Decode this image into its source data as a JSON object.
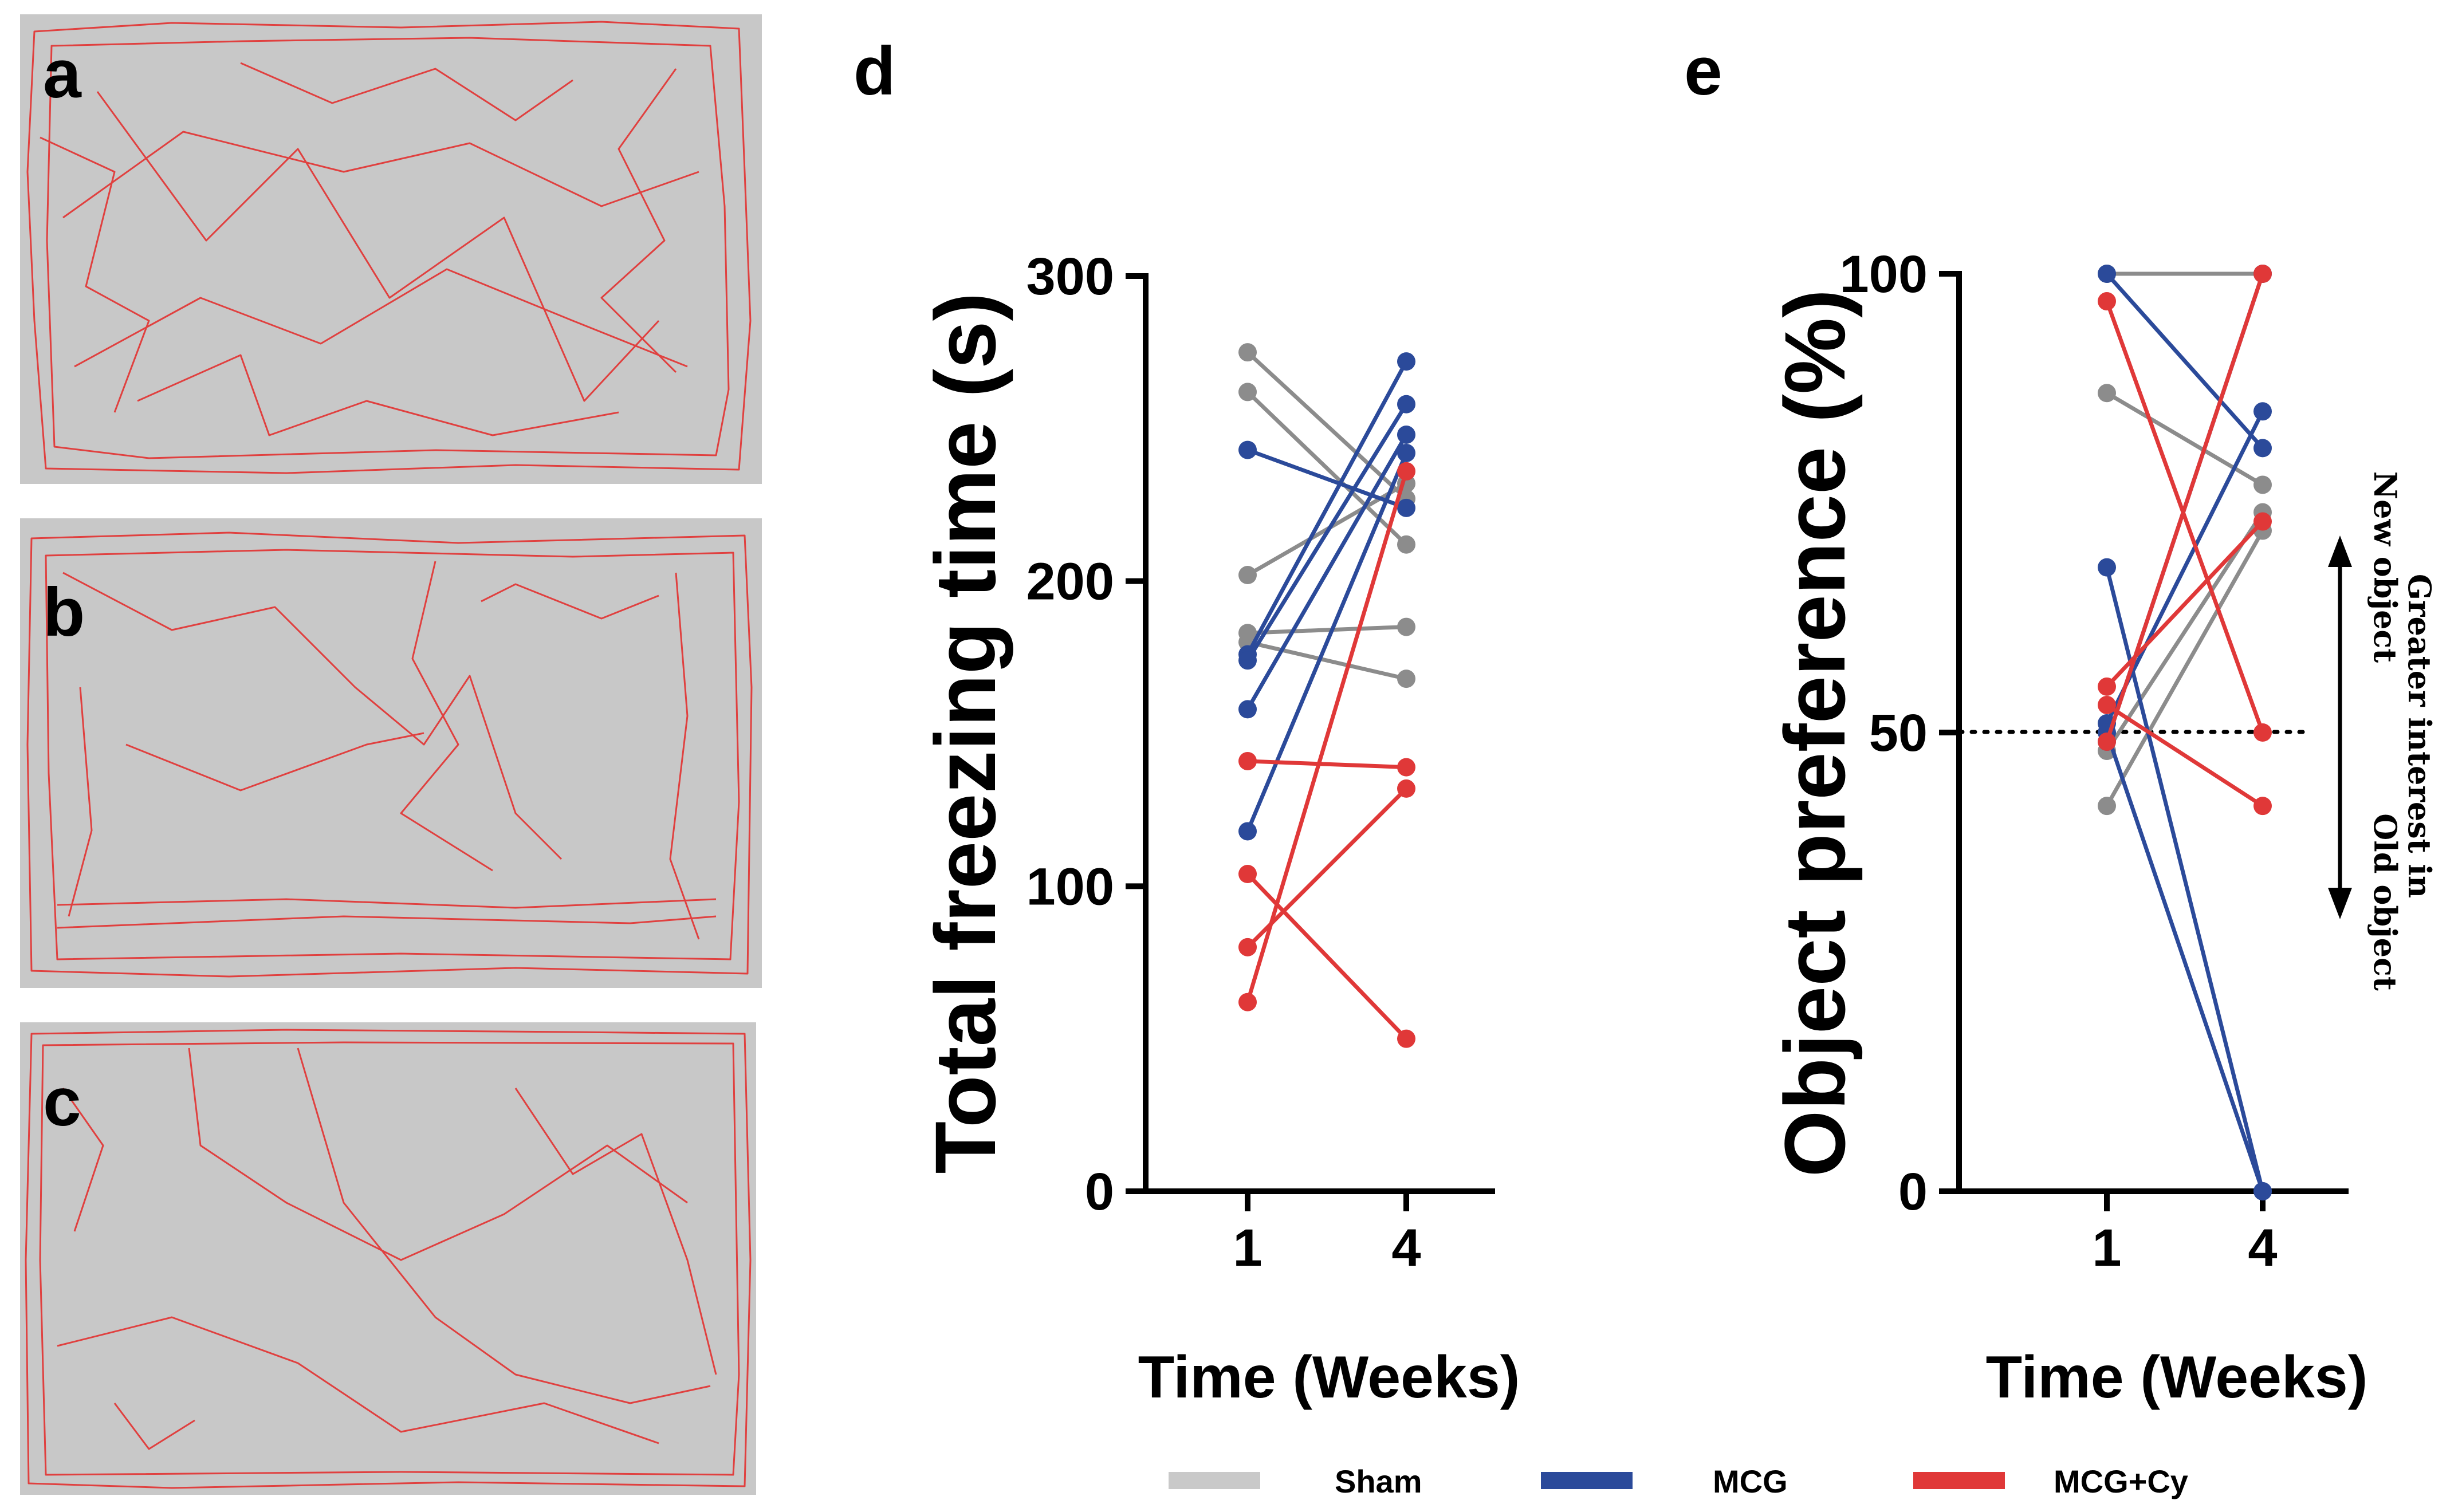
{
  "panels": {
    "a": "a",
    "b": "b",
    "c": "c",
    "d": "d",
    "e": "e"
  },
  "colors": {
    "arena": "#c8c8c8",
    "track": "#e0403f",
    "sham": "#8c8c8c",
    "mcg": "#2b4a9a",
    "mcg_cy": "#e03838",
    "legend_sham": "#c9c9c9"
  },
  "legend": [
    {
      "label": "Sham",
      "color": "#c9c9c9"
    },
    {
      "label": "MCG",
      "color": "#2b4a9a"
    },
    {
      "label": "MCG+Cy",
      "color": "#e03838"
    }
  ],
  "chart_data": [
    {
      "panel": "d",
      "type": "line",
      "xlabel": "Time (Weeks)",
      "ylabel": "Total freezing time (s)",
      "categories": [
        "1",
        "4"
      ],
      "ylim": [
        0,
        300
      ],
      "yticks": [
        "0",
        "100",
        "200",
        "300"
      ],
      "series": [
        {
          "name": "Sham",
          "color": "#8c8c8c",
          "lines": [
            [
              275,
              227
            ],
            [
              262,
              212
            ],
            [
              202,
              232
            ],
            [
              183,
              185
            ],
            [
              180,
              168
            ]
          ]
        },
        {
          "name": "MCG",
          "color": "#2b4a9a",
          "lines": [
            [
              243,
              224
            ],
            [
              176,
              272
            ],
            [
              174,
              258
            ],
            [
              158,
              248
            ],
            [
              118,
              242
            ]
          ]
        },
        {
          "name": "MCG+Cy",
          "color": "#e03838",
          "lines": [
            [
              141,
              139
            ],
            [
              104,
              50
            ],
            [
              80,
              132
            ],
            [
              62,
              236
            ]
          ]
        }
      ]
    },
    {
      "panel": "e",
      "type": "line",
      "xlabel": "Time (Weeks)",
      "ylabel": "Object preference (%)",
      "categories": [
        "1",
        "4"
      ],
      "ylim": [
        0,
        100
      ],
      "yticks": [
        "0",
        "50",
        "100"
      ],
      "reference_line": 50,
      "annotation": {
        "title": "Greater interest in",
        "up": "New object",
        "down": "Old object"
      },
      "series": [
        {
          "name": "Sham",
          "color": "#8c8c8c",
          "lines": [
            [
              100,
              100
            ],
            [
              87,
              77
            ],
            [
              48,
              74
            ],
            [
              42,
              72
            ]
          ]
        },
        {
          "name": "MCG",
          "color": "#2b4a9a",
          "lines": [
            [
              100,
              81
            ],
            [
              68,
              0
            ],
            [
              51,
              85
            ],
            [
              50,
              0
            ],
            [
              49,
              100
            ]
          ]
        },
        {
          "name": "MCG+Cy",
          "color": "#e03838",
          "lines": [
            [
              97,
              50
            ],
            [
              55,
              73
            ],
            [
              53,
              42
            ],
            [
              49,
              100
            ]
          ]
        }
      ]
    }
  ]
}
